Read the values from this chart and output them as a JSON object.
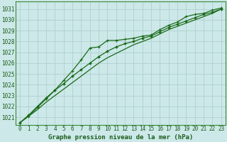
{
  "title": "Graphe pression niveau de la mer (hPa)",
  "background_color": "#cce8e8",
  "plot_bg_color": "#cce8e8",
  "grid_color": "#b0d0d0",
  "line_color": "#1a6b1a",
  "border_color": "#3a8a3a",
  "x_ticks": [
    0,
    1,
    2,
    3,
    4,
    5,
    6,
    7,
    8,
    9,
    10,
    11,
    12,
    13,
    14,
    15,
    16,
    17,
    18,
    19,
    20,
    21,
    22,
    23
  ],
  "y_ticks": [
    1021,
    1022,
    1023,
    1024,
    1025,
    1026,
    1027,
    1028,
    1029,
    1030,
    1031
  ],
  "ylim": [
    1020.3,
    1031.7
  ],
  "xlim": [
    -0.5,
    23.5
  ],
  "series": [
    [
      1020.5,
      1021.1,
      1021.9,
      1022.7,
      1023.5,
      1024.4,
      1025.3,
      1026.3,
      1027.4,
      1027.5,
      1028.1,
      1028.1,
      1028.2,
      1028.3,
      1028.5,
      1028.6,
      1029.1,
      1029.5,
      1029.8,
      1030.3,
      1030.5,
      1030.6,
      1030.9,
      1031.1
    ],
    [
      1020.5,
      1021.2,
      1022.0,
      1022.8,
      1023.5,
      1024.1,
      1024.8,
      1025.4,
      1026.0,
      1026.6,
      1027.1,
      1027.5,
      1027.8,
      1028.0,
      1028.3,
      1028.5,
      1028.9,
      1029.3,
      1029.6,
      1029.9,
      1030.2,
      1030.5,
      1030.7,
      1031.0
    ],
    [
      1020.5,
      1021.1,
      1021.7,
      1022.4,
      1023.0,
      1023.6,
      1024.2,
      1024.8,
      1025.4,
      1026.0,
      1026.5,
      1026.9,
      1027.3,
      1027.7,
      1028.0,
      1028.3,
      1028.7,
      1029.1,
      1029.4,
      1029.7,
      1030.0,
      1030.3,
      1030.6,
      1031.0
    ]
  ],
  "font_color": "#1a5c1a",
  "font_size_ticks": 5.5,
  "font_size_label": 6.5,
  "figsize": [
    3.2,
    2.0
  ],
  "dpi": 100
}
